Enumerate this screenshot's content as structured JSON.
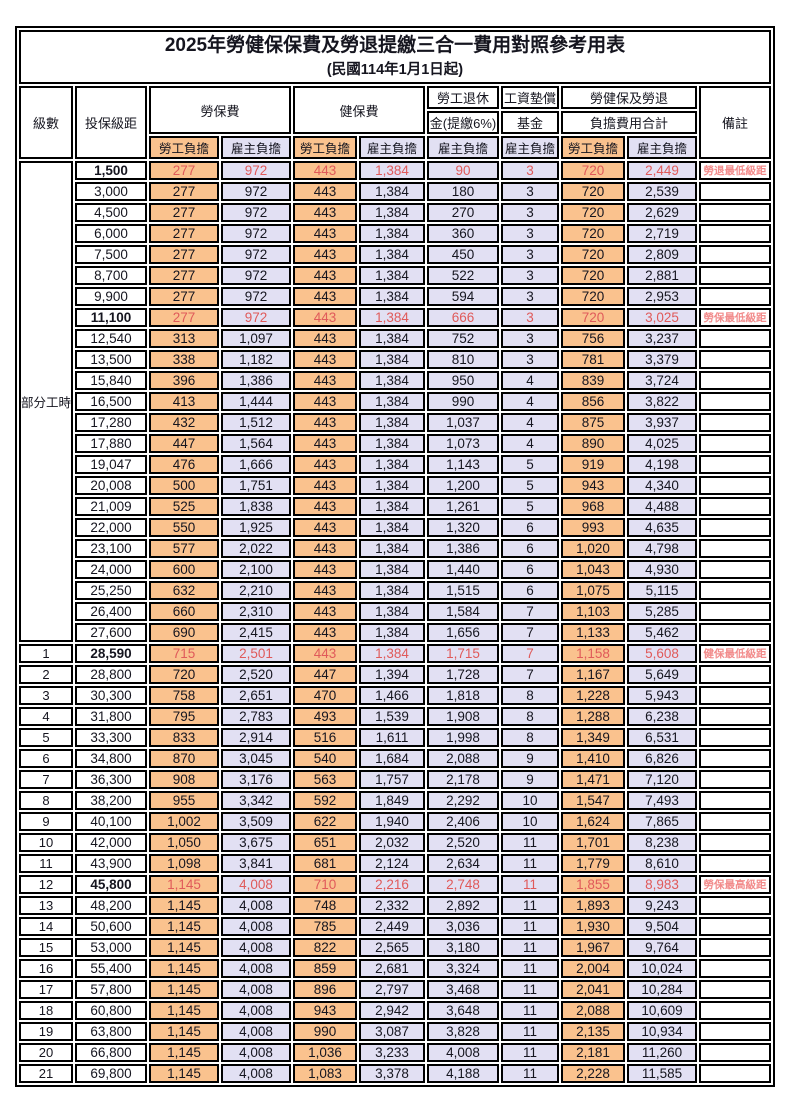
{
  "title": "2025年勞健保保費及勞退提繳三合一費用對照參考用表",
  "subtitle": "(民國114年1月1日起)",
  "header": {
    "level": "級數",
    "bracket": "投保級距",
    "labor_group": "勞保費",
    "health_group": "健保費",
    "pension_line1": "勞工退休",
    "pension_line2": "金(提繳6%)",
    "wage_fund_line1": "工資墊償",
    "wage_fund_line2": "基金",
    "total_line1": "勞健保及勞退",
    "total_line2": "負擔費用合計",
    "remark": "備註",
    "employee": "勞工負擔",
    "employer": "雇主負擔"
  },
  "part_time": {
    "label": "部分工時",
    "span": 23
  },
  "colors": {
    "employee_bg": "#FAC28E",
    "employer_bg": "#E2E0F3",
    "highlight_text": "#E05A5A",
    "remark_text": "#F28B8B",
    "border": "#000000",
    "text": "#15151F"
  },
  "rows": [
    {
      "level": "",
      "bracket": "1,500",
      "v": [
        "277",
        "972",
        "443",
        "1,384",
        "90",
        "3",
        "720",
        "2,449"
      ],
      "remark": "勞退最低級距",
      "hl": true
    },
    {
      "level": "",
      "bracket": "3,000",
      "v": [
        "277",
        "972",
        "443",
        "1,384",
        "180",
        "3",
        "720",
        "2,539"
      ],
      "remark": "",
      "hl": false
    },
    {
      "level": "",
      "bracket": "4,500",
      "v": [
        "277",
        "972",
        "443",
        "1,384",
        "270",
        "3",
        "720",
        "2,629"
      ],
      "remark": "",
      "hl": false
    },
    {
      "level": "",
      "bracket": "6,000",
      "v": [
        "277",
        "972",
        "443",
        "1,384",
        "360",
        "3",
        "720",
        "2,719"
      ],
      "remark": "",
      "hl": false
    },
    {
      "level": "",
      "bracket": "7,500",
      "v": [
        "277",
        "972",
        "443",
        "1,384",
        "450",
        "3",
        "720",
        "2,809"
      ],
      "remark": "",
      "hl": false
    },
    {
      "level": "",
      "bracket": "8,700",
      "v": [
        "277",
        "972",
        "443",
        "1,384",
        "522",
        "3",
        "720",
        "2,881"
      ],
      "remark": "",
      "hl": false
    },
    {
      "level": "",
      "bracket": "9,900",
      "v": [
        "277",
        "972",
        "443",
        "1,384",
        "594",
        "3",
        "720",
        "2,953"
      ],
      "remark": "",
      "hl": false
    },
    {
      "level": "",
      "bracket": "11,100",
      "v": [
        "277",
        "972",
        "443",
        "1,384",
        "666",
        "3",
        "720",
        "3,025"
      ],
      "remark": "勞保最低級距",
      "hl": true
    },
    {
      "level": "",
      "bracket": "12,540",
      "v": [
        "313",
        "1,097",
        "443",
        "1,384",
        "752",
        "3",
        "756",
        "3,237"
      ],
      "remark": "",
      "hl": false
    },
    {
      "level": "",
      "bracket": "13,500",
      "v": [
        "338",
        "1,182",
        "443",
        "1,384",
        "810",
        "3",
        "781",
        "3,379"
      ],
      "remark": "",
      "hl": false
    },
    {
      "level": "",
      "bracket": "15,840",
      "v": [
        "396",
        "1,386",
        "443",
        "1,384",
        "950",
        "4",
        "839",
        "3,724"
      ],
      "remark": "",
      "hl": false
    },
    {
      "level": "",
      "bracket": "16,500",
      "v": [
        "413",
        "1,444",
        "443",
        "1,384",
        "990",
        "4",
        "856",
        "3,822"
      ],
      "remark": "",
      "hl": false
    },
    {
      "level": "",
      "bracket": "17,280",
      "v": [
        "432",
        "1,512",
        "443",
        "1,384",
        "1,037",
        "4",
        "875",
        "3,937"
      ],
      "remark": "",
      "hl": false
    },
    {
      "level": "",
      "bracket": "17,880",
      "v": [
        "447",
        "1,564",
        "443",
        "1,384",
        "1,073",
        "4",
        "890",
        "4,025"
      ],
      "remark": "",
      "hl": false
    },
    {
      "level": "",
      "bracket": "19,047",
      "v": [
        "476",
        "1,666",
        "443",
        "1,384",
        "1,143",
        "5",
        "919",
        "4,198"
      ],
      "remark": "",
      "hl": false
    },
    {
      "level": "",
      "bracket": "20,008",
      "v": [
        "500",
        "1,751",
        "443",
        "1,384",
        "1,200",
        "5",
        "943",
        "4,340"
      ],
      "remark": "",
      "hl": false
    },
    {
      "level": "",
      "bracket": "21,009",
      "v": [
        "525",
        "1,838",
        "443",
        "1,384",
        "1,261",
        "5",
        "968",
        "4,488"
      ],
      "remark": "",
      "hl": false
    },
    {
      "level": "",
      "bracket": "22,000",
      "v": [
        "550",
        "1,925",
        "443",
        "1,384",
        "1,320",
        "6",
        "993",
        "4,635"
      ],
      "remark": "",
      "hl": false
    },
    {
      "level": "",
      "bracket": "23,100",
      "v": [
        "577",
        "2,022",
        "443",
        "1,384",
        "1,386",
        "6",
        "1,020",
        "4,798"
      ],
      "remark": "",
      "hl": false
    },
    {
      "level": "",
      "bracket": "24,000",
      "v": [
        "600",
        "2,100",
        "443",
        "1,384",
        "1,440",
        "6",
        "1,043",
        "4,930"
      ],
      "remark": "",
      "hl": false
    },
    {
      "level": "",
      "bracket": "25,250",
      "v": [
        "632",
        "2,210",
        "443",
        "1,384",
        "1,515",
        "6",
        "1,075",
        "5,115"
      ],
      "remark": "",
      "hl": false
    },
    {
      "level": "",
      "bracket": "26,400",
      "v": [
        "660",
        "2,310",
        "443",
        "1,384",
        "1,584",
        "7",
        "1,103",
        "5,285"
      ],
      "remark": "",
      "hl": false
    },
    {
      "level": "",
      "bracket": "27,600",
      "v": [
        "690",
        "2,415",
        "443",
        "1,384",
        "1,656",
        "7",
        "1,133",
        "5,462"
      ],
      "remark": "",
      "hl": false
    },
    {
      "level": "1",
      "bracket": "28,590",
      "v": [
        "715",
        "2,501",
        "443",
        "1,384",
        "1,715",
        "7",
        "1,158",
        "5,608"
      ],
      "remark": "健保最低級距",
      "hl": true
    },
    {
      "level": "2",
      "bracket": "28,800",
      "v": [
        "720",
        "2,520",
        "447",
        "1,394",
        "1,728",
        "7",
        "1,167",
        "5,649"
      ],
      "remark": "",
      "hl": false
    },
    {
      "level": "3",
      "bracket": "30,300",
      "v": [
        "758",
        "2,651",
        "470",
        "1,466",
        "1,818",
        "8",
        "1,228",
        "5,943"
      ],
      "remark": "",
      "hl": false
    },
    {
      "level": "4",
      "bracket": "31,800",
      "v": [
        "795",
        "2,783",
        "493",
        "1,539",
        "1,908",
        "8",
        "1,288",
        "6,238"
      ],
      "remark": "",
      "hl": false
    },
    {
      "level": "5",
      "bracket": "33,300",
      "v": [
        "833",
        "2,914",
        "516",
        "1,611",
        "1,998",
        "8",
        "1,349",
        "6,531"
      ],
      "remark": "",
      "hl": false
    },
    {
      "level": "6",
      "bracket": "34,800",
      "v": [
        "870",
        "3,045",
        "540",
        "1,684",
        "2,088",
        "9",
        "1,410",
        "6,826"
      ],
      "remark": "",
      "hl": false
    },
    {
      "level": "7",
      "bracket": "36,300",
      "v": [
        "908",
        "3,176",
        "563",
        "1,757",
        "2,178",
        "9",
        "1,471",
        "7,120"
      ],
      "remark": "",
      "hl": false
    },
    {
      "level": "8",
      "bracket": "38,200",
      "v": [
        "955",
        "3,342",
        "592",
        "1,849",
        "2,292",
        "10",
        "1,547",
        "7,493"
      ],
      "remark": "",
      "hl": false
    },
    {
      "level": "9",
      "bracket": "40,100",
      "v": [
        "1,002",
        "3,509",
        "622",
        "1,940",
        "2,406",
        "10",
        "1,624",
        "7,865"
      ],
      "remark": "",
      "hl": false
    },
    {
      "level": "10",
      "bracket": "42,000",
      "v": [
        "1,050",
        "3,675",
        "651",
        "2,032",
        "2,520",
        "11",
        "1,701",
        "8,238"
      ],
      "remark": "",
      "hl": false
    },
    {
      "level": "11",
      "bracket": "43,900",
      "v": [
        "1,098",
        "3,841",
        "681",
        "2,124",
        "2,634",
        "11",
        "1,779",
        "8,610"
      ],
      "remark": "",
      "hl": false
    },
    {
      "level": "12",
      "bracket": "45,800",
      "v": [
        "1,145",
        "4,008",
        "710",
        "2,216",
        "2,748",
        "11",
        "1,855",
        "8,983"
      ],
      "remark": "勞保最高級距",
      "hl": true
    },
    {
      "level": "13",
      "bracket": "48,200",
      "v": [
        "1,145",
        "4,008",
        "748",
        "2,332",
        "2,892",
        "11",
        "1,893",
        "9,243"
      ],
      "remark": "",
      "hl": false
    },
    {
      "level": "14",
      "bracket": "50,600",
      "v": [
        "1,145",
        "4,008",
        "785",
        "2,449",
        "3,036",
        "11",
        "1,930",
        "9,504"
      ],
      "remark": "",
      "hl": false
    },
    {
      "level": "15",
      "bracket": "53,000",
      "v": [
        "1,145",
        "4,008",
        "822",
        "2,565",
        "3,180",
        "11",
        "1,967",
        "9,764"
      ],
      "remark": "",
      "hl": false
    },
    {
      "level": "16",
      "bracket": "55,400",
      "v": [
        "1,145",
        "4,008",
        "859",
        "2,681",
        "3,324",
        "11",
        "2,004",
        "10,024"
      ],
      "remark": "",
      "hl": false
    },
    {
      "level": "17",
      "bracket": "57,800",
      "v": [
        "1,145",
        "4,008",
        "896",
        "2,797",
        "3,468",
        "11",
        "2,041",
        "10,284"
      ],
      "remark": "",
      "hl": false
    },
    {
      "level": "18",
      "bracket": "60,800",
      "v": [
        "1,145",
        "4,008",
        "943",
        "2,942",
        "3,648",
        "11",
        "2,088",
        "10,609"
      ],
      "remark": "",
      "hl": false
    },
    {
      "level": "19",
      "bracket": "63,800",
      "v": [
        "1,145",
        "4,008",
        "990",
        "3,087",
        "3,828",
        "11",
        "2,135",
        "10,934"
      ],
      "remark": "",
      "hl": false
    },
    {
      "level": "20",
      "bracket": "66,800",
      "v": [
        "1,145",
        "4,008",
        "1,036",
        "3,233",
        "4,008",
        "11",
        "2,181",
        "11,260"
      ],
      "remark": "",
      "hl": false
    },
    {
      "level": "21",
      "bracket": "69,800",
      "v": [
        "1,145",
        "4,008",
        "1,083",
        "3,378",
        "4,188",
        "11",
        "2,228",
        "11,585"
      ],
      "remark": "",
      "hl": false
    }
  ]
}
